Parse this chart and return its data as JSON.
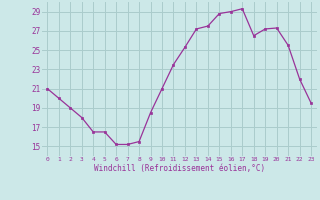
{
  "x": [
    0,
    1,
    2,
    3,
    4,
    5,
    6,
    7,
    8,
    9,
    10,
    11,
    12,
    13,
    14,
    15,
    16,
    17,
    18,
    19,
    20,
    21,
    22,
    23
  ],
  "y": [
    21,
    20,
    19,
    18,
    16.5,
    16.5,
    15.2,
    15.2,
    15.5,
    18.5,
    21,
    23.5,
    25.3,
    27.2,
    27.5,
    28.8,
    29.0,
    29.3,
    26.5,
    27.2,
    27.3,
    25.5,
    22,
    19.5
  ],
  "line_color": "#993399",
  "marker_color": "#993399",
  "bg_color": "#cce8e8",
  "grid_color": "#aacccc",
  "tick_label_color": "#993399",
  "xlabel": "Windchill (Refroidissement éolien,°C)",
  "xlabel_color": "#993399",
  "ylim": [
    14,
    30
  ],
  "yticks": [
    15,
    17,
    19,
    21,
    23,
    25,
    27,
    29
  ],
  "xticks": [
    0,
    1,
    2,
    3,
    4,
    5,
    6,
    7,
    8,
    9,
    10,
    11,
    12,
    13,
    14,
    15,
    16,
    17,
    18,
    19,
    20,
    21,
    22,
    23
  ]
}
